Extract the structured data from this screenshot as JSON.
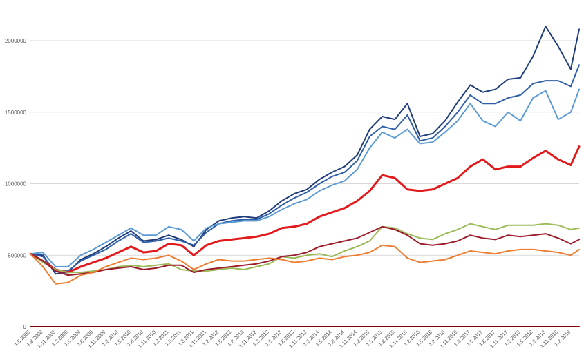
{
  "chart_data": {
    "type": "line",
    "title": "",
    "xlabel": "",
    "ylabel": "",
    "ylim": [
      0,
      2300000
    ],
    "y_ticks": [
      0,
      500000,
      1000000,
      1500000,
      2000000
    ],
    "grid": true,
    "legend": "none",
    "x_tick_labels": [
      "1.5.2008",
      "1.8.2008",
      "1.11.2008",
      "1.2.2009",
      "1.5.2009",
      "1.8.2009",
      "1.11.2009",
      "1.2.2010",
      "1.5.2010",
      "1.8.2010",
      "1.11.2010",
      "1.2.2011",
      "1.5.2011",
      "1.8.2011",
      "1.11.2011",
      "1.2.2012",
      "1.5.2012",
      "1.8.2012",
      "1.11.2012",
      "1.2.2013",
      "1.5.2013",
      "1.8.2013",
      "1.11.2013",
      "1.2.2014",
      "1.5.2014",
      "1.8.2014",
      "1.11.2014",
      "1.2.2015",
      "1.5.2015",
      "1.8.2015",
      "1.11.2015",
      "1.2.2016",
      "1.5.2016",
      "1.8.2016",
      "1.11.2016",
      "1.2.2017",
      "1.5.2017",
      "1.8.2017",
      "1.11.2017",
      "1.2.2018",
      "1.5.2018",
      "1.8.2018",
      "1.11.2018",
      "1.2.2019"
    ],
    "series": [
      {
        "color": "#1f3d7a",
        "width": 2,
        "x": [
          "2008-05",
          "2008-08",
          "2008-11",
          "2009-02",
          "2009-05",
          "2009-08",
          "2009-11",
          "2010-02",
          "2010-05",
          "2010-08",
          "2010-11",
          "2011-02",
          "2011-05",
          "2011-08",
          "2011-11",
          "2012-02",
          "2012-05",
          "2012-08",
          "2012-11",
          "2013-02",
          "2013-05",
          "2013-08",
          "2013-11",
          "2014-02",
          "2014-05",
          "2014-08",
          "2014-11",
          "2015-02",
          "2015-05",
          "2015-08",
          "2015-11",
          "2016-02",
          "2016-05",
          "2016-08",
          "2016-11",
          "2017-02",
          "2017-05",
          "2017-08",
          "2017-11",
          "2018-02",
          "2018-05",
          "2018-08",
          "2018-11",
          "2019-02",
          "2019-04"
        ],
        "values": [
          510000,
          500000,
          370000,
          380000,
          470000,
          510000,
          560000,
          620000,
          670000,
          600000,
          610000,
          640000,
          610000,
          560000,
          680000,
          740000,
          760000,
          770000,
          760000,
          810000,
          880000,
          930000,
          960000,
          1030000,
          1080000,
          1120000,
          1200000,
          1380000,
          1470000,
          1450000,
          1560000,
          1330000,
          1350000,
          1440000,
          1570000,
          1690000,
          1640000,
          1660000,
          1730000,
          1740000,
          1890000,
          2100000,
          1960000,
          1800000,
          2080000
        ]
      },
      {
        "color": "#2e5fa8",
        "width": 2,
        "x": [
          "2008-05",
          "2008-08",
          "2008-11",
          "2009-02",
          "2009-05",
          "2009-08",
          "2009-11",
          "2010-02",
          "2010-05",
          "2010-08",
          "2010-11",
          "2011-02",
          "2011-05",
          "2011-08",
          "2011-11",
          "2012-02",
          "2012-05",
          "2012-08",
          "2012-11",
          "2013-02",
          "2013-05",
          "2013-08",
          "2013-11",
          "2014-02",
          "2014-05",
          "2014-08",
          "2014-11",
          "2015-02",
          "2015-05",
          "2015-08",
          "2015-11",
          "2016-02",
          "2016-05",
          "2016-08",
          "2016-11",
          "2017-02",
          "2017-05",
          "2017-08",
          "2017-11",
          "2018-02",
          "2018-05",
          "2018-08",
          "2018-11",
          "2019-02",
          "2019-04"
        ],
        "values": [
          510000,
          490000,
          390000,
          390000,
          460000,
          500000,
          540000,
          600000,
          650000,
          590000,
          600000,
          620000,
          600000,
          570000,
          660000,
          720000,
          740000,
          750000,
          750000,
          790000,
          850000,
          900000,
          940000,
          1000000,
          1050000,
          1080000,
          1160000,
          1330000,
          1400000,
          1380000,
          1480000,
          1300000,
          1320000,
          1400000,
          1500000,
          1620000,
          1560000,
          1560000,
          1600000,
          1620000,
          1700000,
          1720000,
          1720000,
          1680000,
          1830000
        ]
      },
      {
        "color": "#5b9bd5",
        "width": 2,
        "x": [
          "2008-05",
          "2008-08",
          "2008-11",
          "2009-02",
          "2009-05",
          "2009-08",
          "2009-11",
          "2010-02",
          "2010-05",
          "2010-08",
          "2010-11",
          "2011-02",
          "2011-05",
          "2011-08",
          "2011-11",
          "2012-02",
          "2012-05",
          "2012-08",
          "2012-11",
          "2013-02",
          "2013-05",
          "2013-08",
          "2013-11",
          "2014-02",
          "2014-05",
          "2014-08",
          "2014-11",
          "2015-02",
          "2015-05",
          "2015-08",
          "2015-11",
          "2016-02",
          "2016-05",
          "2016-08",
          "2016-11",
          "2017-02",
          "2017-05",
          "2017-08",
          "2017-11",
          "2018-02",
          "2018-05",
          "2018-08",
          "2018-11",
          "2019-02",
          "2019-04"
        ],
        "values": [
          510000,
          520000,
          420000,
          420000,
          500000,
          540000,
          590000,
          640000,
          690000,
          640000,
          640000,
          700000,
          680000,
          600000,
          690000,
          720000,
          730000,
          740000,
          740000,
          770000,
          820000,
          860000,
          890000,
          950000,
          990000,
          1020000,
          1100000,
          1250000,
          1360000,
          1320000,
          1380000,
          1280000,
          1290000,
          1360000,
          1440000,
          1560000,
          1440000,
          1400000,
          1500000,
          1440000,
          1600000,
          1650000,
          1450000,
          1500000,
          1660000
        ]
      },
      {
        "color": "#e31a1c",
        "width": 3,
        "x": [
          "2008-05",
          "2008-08",
          "2008-11",
          "2009-02",
          "2009-05",
          "2009-08",
          "2009-11",
          "2010-02",
          "2010-05",
          "2010-08",
          "2010-11",
          "2011-02",
          "2011-05",
          "2011-08",
          "2011-11",
          "2012-02",
          "2012-05",
          "2012-08",
          "2012-11",
          "2013-02",
          "2013-05",
          "2013-08",
          "2013-11",
          "2014-02",
          "2014-05",
          "2014-08",
          "2014-11",
          "2015-02",
          "2015-05",
          "2015-08",
          "2015-11",
          "2016-02",
          "2016-05",
          "2016-08",
          "2016-11",
          "2017-02",
          "2017-05",
          "2017-08",
          "2017-11",
          "2018-02",
          "2018-05",
          "2018-08",
          "2018-11",
          "2019-02",
          "2019-04"
        ],
        "values": [
          510000,
          460000,
          400000,
          380000,
          420000,
          450000,
          480000,
          520000,
          560000,
          520000,
          530000,
          580000,
          570000,
          500000,
          570000,
          600000,
          610000,
          620000,
          630000,
          650000,
          690000,
          700000,
          720000,
          770000,
          800000,
          830000,
          880000,
          950000,
          1060000,
          1040000,
          960000,
          950000,
          960000,
          1000000,
          1040000,
          1120000,
          1170000,
          1100000,
          1120000,
          1120000,
          1180000,
          1230000,
          1170000,
          1130000,
          1260000
        ]
      },
      {
        "color": "#9bbb59",
        "width": 2,
        "x": [
          "2008-05",
          "2008-08",
          "2008-11",
          "2009-02",
          "2009-05",
          "2009-08",
          "2009-11",
          "2010-02",
          "2010-05",
          "2010-08",
          "2010-11",
          "2011-02",
          "2011-05",
          "2011-08",
          "2011-11",
          "2012-02",
          "2012-05",
          "2012-08",
          "2012-11",
          "2013-02",
          "2013-05",
          "2013-08",
          "2013-11",
          "2014-02",
          "2014-05",
          "2014-08",
          "2014-11",
          "2015-02",
          "2015-05",
          "2015-08",
          "2015-11",
          "2016-02",
          "2016-05",
          "2016-08",
          "2016-11",
          "2017-02",
          "2017-05",
          "2017-08",
          "2017-11",
          "2018-02",
          "2018-05",
          "2018-08",
          "2018-11",
          "2019-02",
          "2019-04"
        ],
        "values": [
          510000,
          450000,
          400000,
          380000,
          380000,
          390000,
          400000,
          420000,
          430000,
          420000,
          430000,
          440000,
          400000,
          390000,
          390000,
          400000,
          410000,
          400000,
          420000,
          440000,
          490000,
          480000,
          500000,
          510000,
          490000,
          530000,
          560000,
          600000,
          700000,
          690000,
          650000,
          620000,
          610000,
          650000,
          680000,
          720000,
          700000,
          680000,
          710000,
          710000,
          710000,
          720000,
          710000,
          680000,
          690000
        ]
      },
      {
        "color": "#9c1c2c",
        "width": 2,
        "x": [
          "2008-05",
          "2008-08",
          "2008-11",
          "2009-02",
          "2009-05",
          "2009-08",
          "2009-11",
          "2010-02",
          "2010-05",
          "2010-08",
          "2010-11",
          "2011-02",
          "2011-05",
          "2011-08",
          "2011-11",
          "2012-02",
          "2012-05",
          "2012-08",
          "2012-11",
          "2013-02",
          "2013-05",
          "2013-08",
          "2013-11",
          "2014-02",
          "2014-05",
          "2014-08",
          "2014-11",
          "2015-02",
          "2015-05",
          "2015-08",
          "2015-11",
          "2016-02",
          "2016-05",
          "2016-08",
          "2016-11",
          "2017-02",
          "2017-05",
          "2017-08",
          "2017-11",
          "2018-02",
          "2018-05",
          "2018-08",
          "2018-11",
          "2019-02",
          "2019-04"
        ],
        "values": [
          510000,
          460000,
          390000,
          360000,
          370000,
          380000,
          400000,
          410000,
          420000,
          400000,
          410000,
          430000,
          430000,
          380000,
          400000,
          410000,
          420000,
          430000,
          440000,
          460000,
          490000,
          500000,
          520000,
          560000,
          580000,
          600000,
          620000,
          660000,
          700000,
          680000,
          640000,
          580000,
          570000,
          580000,
          600000,
          640000,
          620000,
          610000,
          640000,
          630000,
          640000,
          650000,
          620000,
          580000,
          610000
        ]
      },
      {
        "color": "#ed7d31",
        "width": 2,
        "x": [
          "2008-05",
          "2008-08",
          "2008-11",
          "2009-02",
          "2009-05",
          "2009-08",
          "2009-11",
          "2010-02",
          "2010-05",
          "2010-08",
          "2010-11",
          "2011-02",
          "2011-05",
          "2011-08",
          "2011-11",
          "2012-02",
          "2012-05",
          "2012-08",
          "2012-11",
          "2013-02",
          "2013-05",
          "2013-08",
          "2013-11",
          "2014-02",
          "2014-05",
          "2014-08",
          "2014-11",
          "2015-02",
          "2015-05",
          "2015-08",
          "2015-11",
          "2016-02",
          "2016-05",
          "2016-08",
          "2016-11",
          "2017-02",
          "2017-05",
          "2017-08",
          "2017-11",
          "2018-02",
          "2018-05",
          "2018-08",
          "2018-11",
          "2019-02",
          "2019-04"
        ],
        "values": [
          510000,
          420000,
          300000,
          310000,
          360000,
          380000,
          420000,
          450000,
          480000,
          470000,
          480000,
          500000,
          460000,
          400000,
          440000,
          470000,
          460000,
          460000,
          470000,
          480000,
          470000,
          450000,
          460000,
          480000,
          470000,
          490000,
          500000,
          520000,
          570000,
          560000,
          480000,
          450000,
          460000,
          470000,
          500000,
          530000,
          520000,
          510000,
          530000,
          540000,
          540000,
          530000,
          520000,
          500000,
          540000
        ]
      },
      {
        "color": "#7f0000",
        "width": 2,
        "x": [
          "2008-05",
          "2019-04"
        ],
        "values": [
          0,
          0
        ]
      }
    ]
  }
}
